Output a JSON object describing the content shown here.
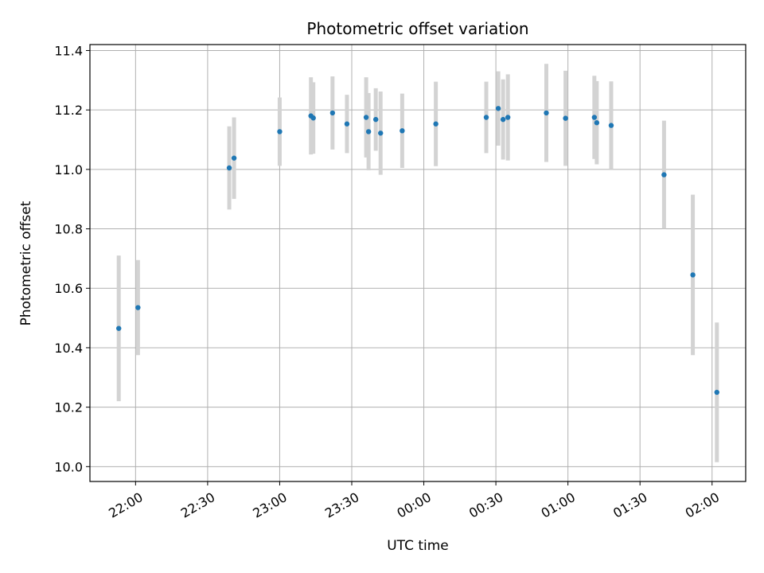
{
  "chart_data": {
    "type": "scatter",
    "title": "Photometric offset variation",
    "xlabel": "UTC time",
    "ylabel": "Photometric offset",
    "x_type": "time",
    "xlim": [
      "21:41",
      "02:14"
    ],
    "ylim": [
      9.95,
      11.42
    ],
    "x_ticks": [
      "22:00",
      "22:30",
      "23:00",
      "23:30",
      "00:00",
      "00:30",
      "01:00",
      "01:30",
      "02:00"
    ],
    "y_ticks": [
      10.0,
      10.2,
      10.4,
      10.6,
      10.8,
      11.0,
      11.2,
      11.4
    ],
    "grid": true,
    "legend": "none",
    "colors": {
      "points": "#1f77b4",
      "errorbars": "#d3d3d3",
      "grid": "#b0b0b0"
    },
    "series": [
      {
        "points": [
          {
            "t": "21:53",
            "y": 10.465,
            "err": 0.245
          },
          {
            "t": "22:01",
            "y": 10.535,
            "err": 0.16
          },
          {
            "t": "22:39",
            "y": 11.005,
            "err": 0.14
          },
          {
            "t": "22:41",
            "y": 11.038,
            "err": 0.137
          },
          {
            "t": "23:00",
            "y": 11.127,
            "err": 0.115
          },
          {
            "t": "23:13",
            "y": 11.18,
            "err": 0.13
          },
          {
            "t": "23:14",
            "y": 11.173,
            "err": 0.12
          },
          {
            "t": "23:22",
            "y": 11.19,
            "err": 0.123
          },
          {
            "t": "23:28",
            "y": 11.153,
            "err": 0.098
          },
          {
            "t": "23:36",
            "y": 11.175,
            "err": 0.135
          },
          {
            "t": "23:37",
            "y": 11.127,
            "err": 0.13
          },
          {
            "t": "23:40",
            "y": 11.168,
            "err": 0.105
          },
          {
            "t": "23:42",
            "y": 11.122,
            "err": 0.14
          },
          {
            "t": "23:51",
            "y": 11.13,
            "err": 0.125
          },
          {
            "t": "00:05",
            "y": 11.153,
            "err": 0.142
          },
          {
            "t": "00:26",
            "y": 11.175,
            "err": 0.12
          },
          {
            "t": "00:31",
            "y": 11.205,
            "err": 0.125
          },
          {
            "t": "00:33",
            "y": 11.168,
            "err": 0.135
          },
          {
            "t": "00:35",
            "y": 11.175,
            "err": 0.145
          },
          {
            "t": "00:51",
            "y": 11.19,
            "err": 0.165
          },
          {
            "t": "00:59",
            "y": 11.172,
            "err": 0.16
          },
          {
            "t": "01:11",
            "y": 11.175,
            "err": 0.14
          },
          {
            "t": "01:12",
            "y": 11.157,
            "err": 0.14
          },
          {
            "t": "01:18",
            "y": 11.148,
            "err": 0.148
          },
          {
            "t": "01:40",
            "y": 10.982,
            "err": 0.182
          },
          {
            "t": "01:52",
            "y": 10.645,
            "err": 0.27
          },
          {
            "t": "02:02",
            "y": 10.25,
            "err": 0.235
          }
        ]
      }
    ]
  }
}
